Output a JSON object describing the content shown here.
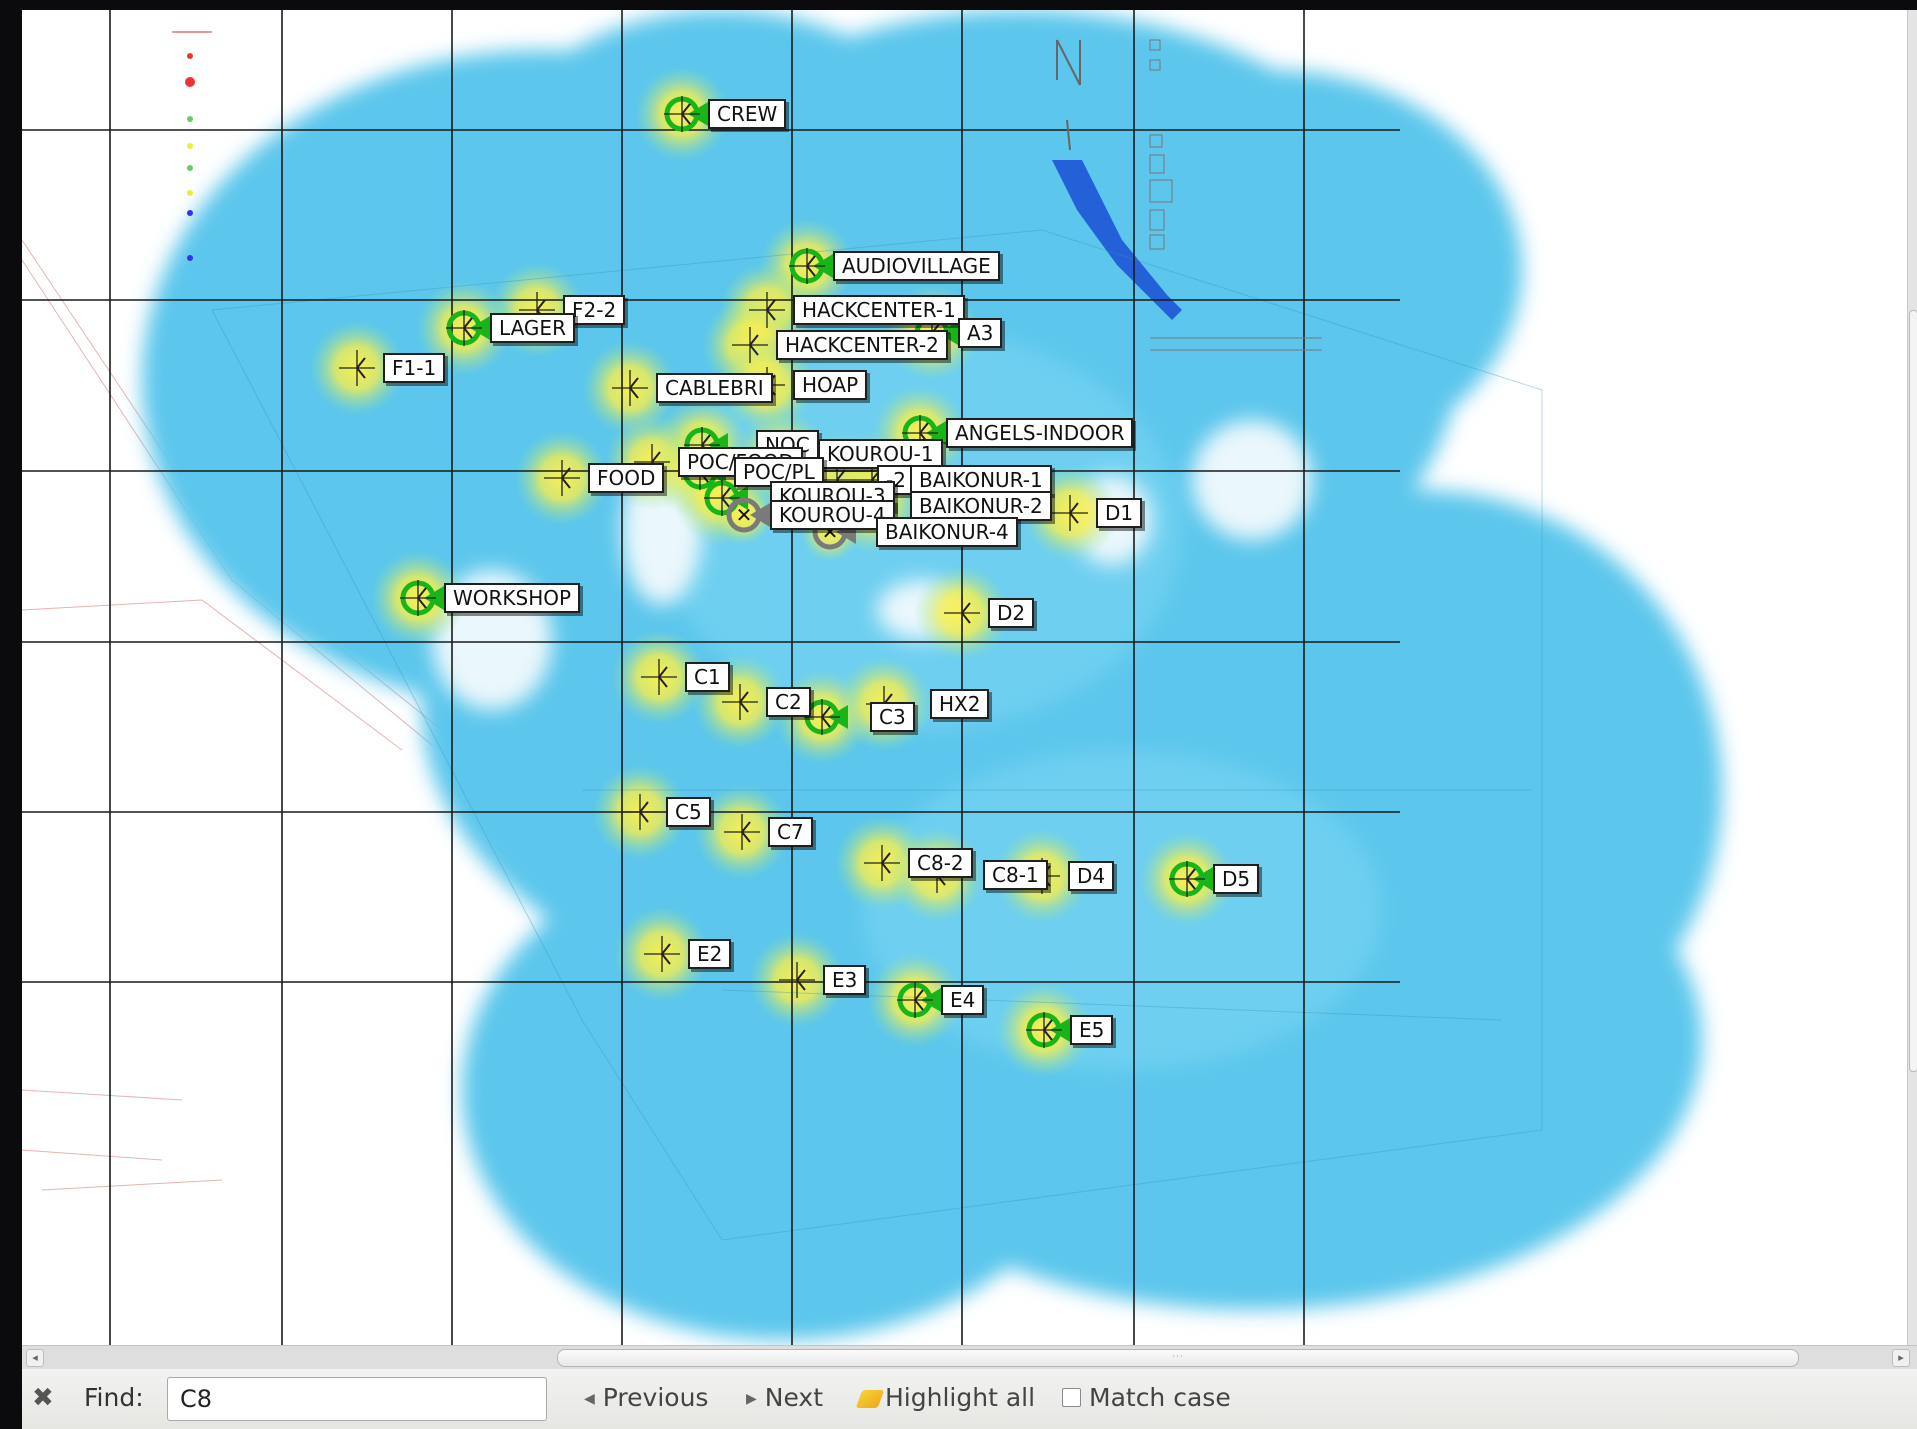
{
  "map": {
    "compass_letter": "N",
    "access_points": [
      {
        "name": "CREW",
        "type": "ok"
      },
      {
        "name": "AUDIOVILLAGE",
        "type": "ok"
      },
      {
        "name": "HACKCENTER-1",
        "type": "std"
      },
      {
        "name": "HACKCENTER-2",
        "type": "std"
      },
      {
        "name": "A3",
        "type": "ok"
      },
      {
        "name": "F2-2",
        "type": "std"
      },
      {
        "name": "LAGER",
        "type": "ok"
      },
      {
        "name": "F1-1",
        "type": "std"
      },
      {
        "name": "CABLEBRI",
        "type": "std"
      },
      {
        "name": "HOAP",
        "type": "std"
      },
      {
        "name": "ANGELS-INDOOR",
        "type": "ok"
      },
      {
        "name": "NOC",
        "type": "ok"
      },
      {
        "name": "KOUROU-1",
        "type": "ok"
      },
      {
        "name": "POC/FOOD",
        "type": "std"
      },
      {
        "name": "POC/PL",
        "type": "ok"
      },
      {
        "name": "-2",
        "type": "std"
      },
      {
        "name": "BAIKONUR-1",
        "type": "std"
      },
      {
        "name": "FOOD",
        "type": "std"
      },
      {
        "name": "KOUROU-3",
        "type": "ok"
      },
      {
        "name": "BAIKONUR-2",
        "type": "std"
      },
      {
        "name": "KOUROU-4",
        "type": "bad"
      },
      {
        "name": "BAIKONUR-4",
        "type": "bad"
      },
      {
        "name": "D1",
        "type": "std"
      },
      {
        "name": "WORKSHOP",
        "type": "ok"
      },
      {
        "name": "D2",
        "type": "std"
      },
      {
        "name": "C1",
        "type": "std"
      },
      {
        "name": "C2",
        "type": "std"
      },
      {
        "name": "C3",
        "type": "ok"
      },
      {
        "name": "HX2",
        "type": "std"
      },
      {
        "name": "C5",
        "type": "std"
      },
      {
        "name": "C7",
        "type": "std"
      },
      {
        "name": "C8-2",
        "type": "std"
      },
      {
        "name": "C8-1",
        "type": "std"
      },
      {
        "name": "D4",
        "type": "std"
      },
      {
        "name": "D5",
        "type": "ok"
      },
      {
        "name": "E2",
        "type": "std"
      },
      {
        "name": "E3",
        "type": "std"
      },
      {
        "name": "E4",
        "type": "ok"
      },
      {
        "name": "E5",
        "type": "ok"
      }
    ]
  },
  "findbar": {
    "label": "Find:",
    "query": "C8",
    "previous_label": "Previous",
    "next_label": "Next",
    "highlight_all_label": "Highlight all",
    "match_case_label": "Match case",
    "match_case_checked": false,
    "close_icon": "close-icon"
  },
  "colors": {
    "coverage": "#57c8ee",
    "hotspot": "#f6ee3a",
    "ok_marker": "#18b418",
    "bad_marker": "#7a7a7a",
    "grid": "#1a1a1a"
  }
}
